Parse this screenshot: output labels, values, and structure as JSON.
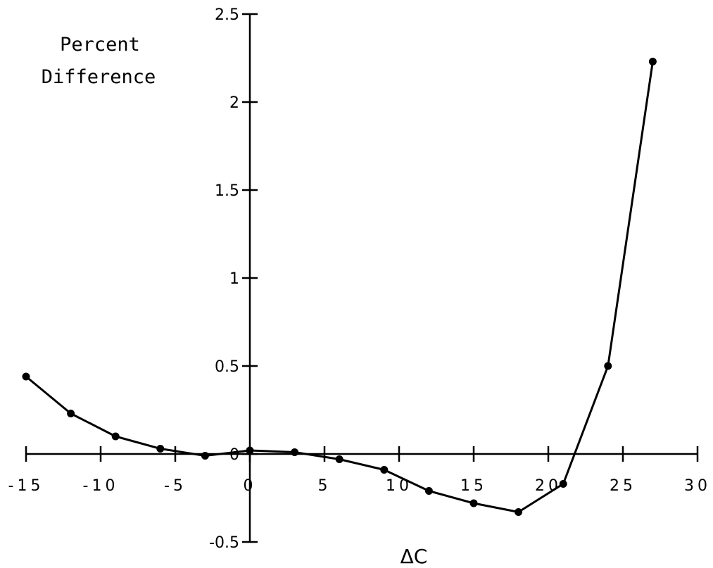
{
  "chart_data": {
    "type": "line",
    "title": "",
    "ylabel_lines": [
      "Percent",
      "Difference"
    ],
    "xlabel": "ΔC",
    "xlim": [
      -15,
      30
    ],
    "ylim": [
      -0.5,
      2.5
    ],
    "x_ticks": [
      -15,
      -10,
      -5,
      0,
      5,
      10,
      15,
      20,
      25,
      30
    ],
    "x_tick_labels": [
      "-15",
      "-10",
      "-5",
      "0",
      "5",
      "10",
      "15",
      "20",
      "25",
      "30"
    ],
    "y_ticks": [
      -0.5,
      0,
      0.5,
      1,
      1.5,
      2,
      2.5
    ],
    "y_tick_labels": [
      "-0.5",
      "0",
      "0.5",
      "1",
      "1.5",
      "2",
      "2.5"
    ],
    "grid": false,
    "series": [
      {
        "x": [
          -15,
          -12,
          -9,
          -6,
          -3,
          0,
          3,
          6,
          9,
          12,
          15,
          18,
          21,
          24,
          27
        ],
        "y": [
          0.44,
          0.23,
          0.1,
          0.03,
          -0.01,
          0.02,
          0.01,
          -0.03,
          -0.09,
          -0.21,
          -0.28,
          -0.33,
          -0.17,
          0.5,
          2.23
        ]
      }
    ]
  }
}
